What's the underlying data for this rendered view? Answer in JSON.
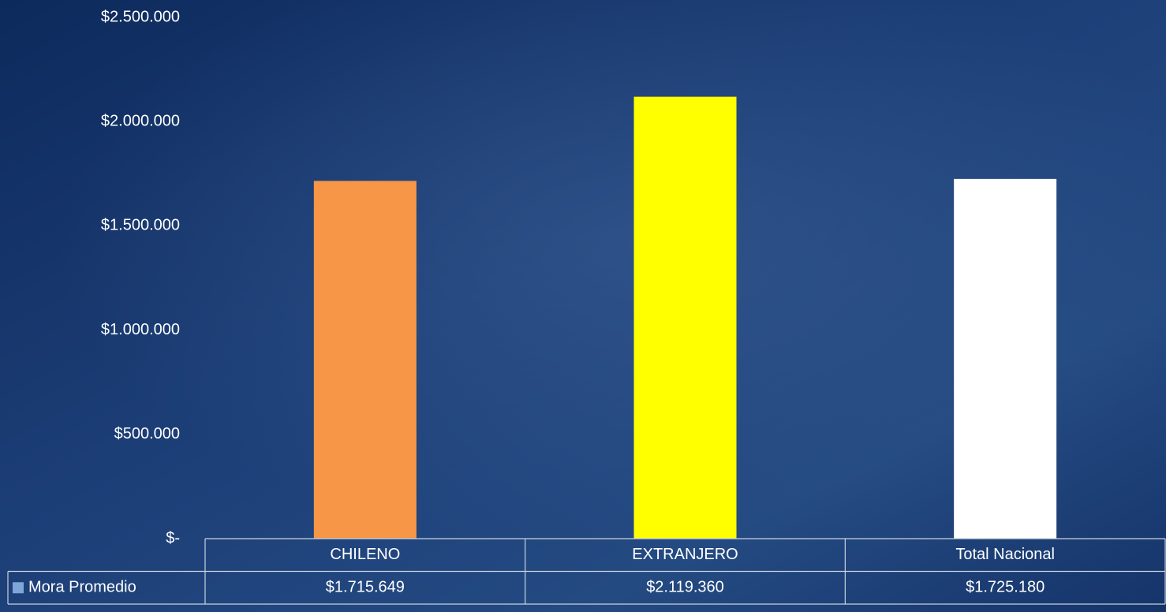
{
  "chart_data": {
    "type": "bar",
    "categories": [
      "CHILENO",
      "EXTRANJERO",
      "Total Nacional"
    ],
    "series": [
      {
        "name": "Mora Promedio",
        "color": "#7ea6d8",
        "point_colors": [
          "#f79646",
          "#ffff00",
          "#ffffff"
        ],
        "values": [
          1715649,
          2119360,
          1725180
        ],
        "value_labels": [
          "$1.715.649",
          "$2.119.360",
          "$1.725.180"
        ]
      }
    ],
    "ylim": [
      0,
      2500000
    ],
    "yticks": [
      {
        "value": 0,
        "label": "$-"
      },
      {
        "value": 500000,
        "label": "$500.000"
      },
      {
        "value": 1000000,
        "label": "$1.000.000"
      },
      {
        "value": 1500000,
        "label": "$1.500.000"
      },
      {
        "value": 2000000,
        "label": "$2.000.000"
      },
      {
        "value": 2500000,
        "label": "$2.500.000"
      }
    ],
    "grid": false,
    "data_table": true
  }
}
